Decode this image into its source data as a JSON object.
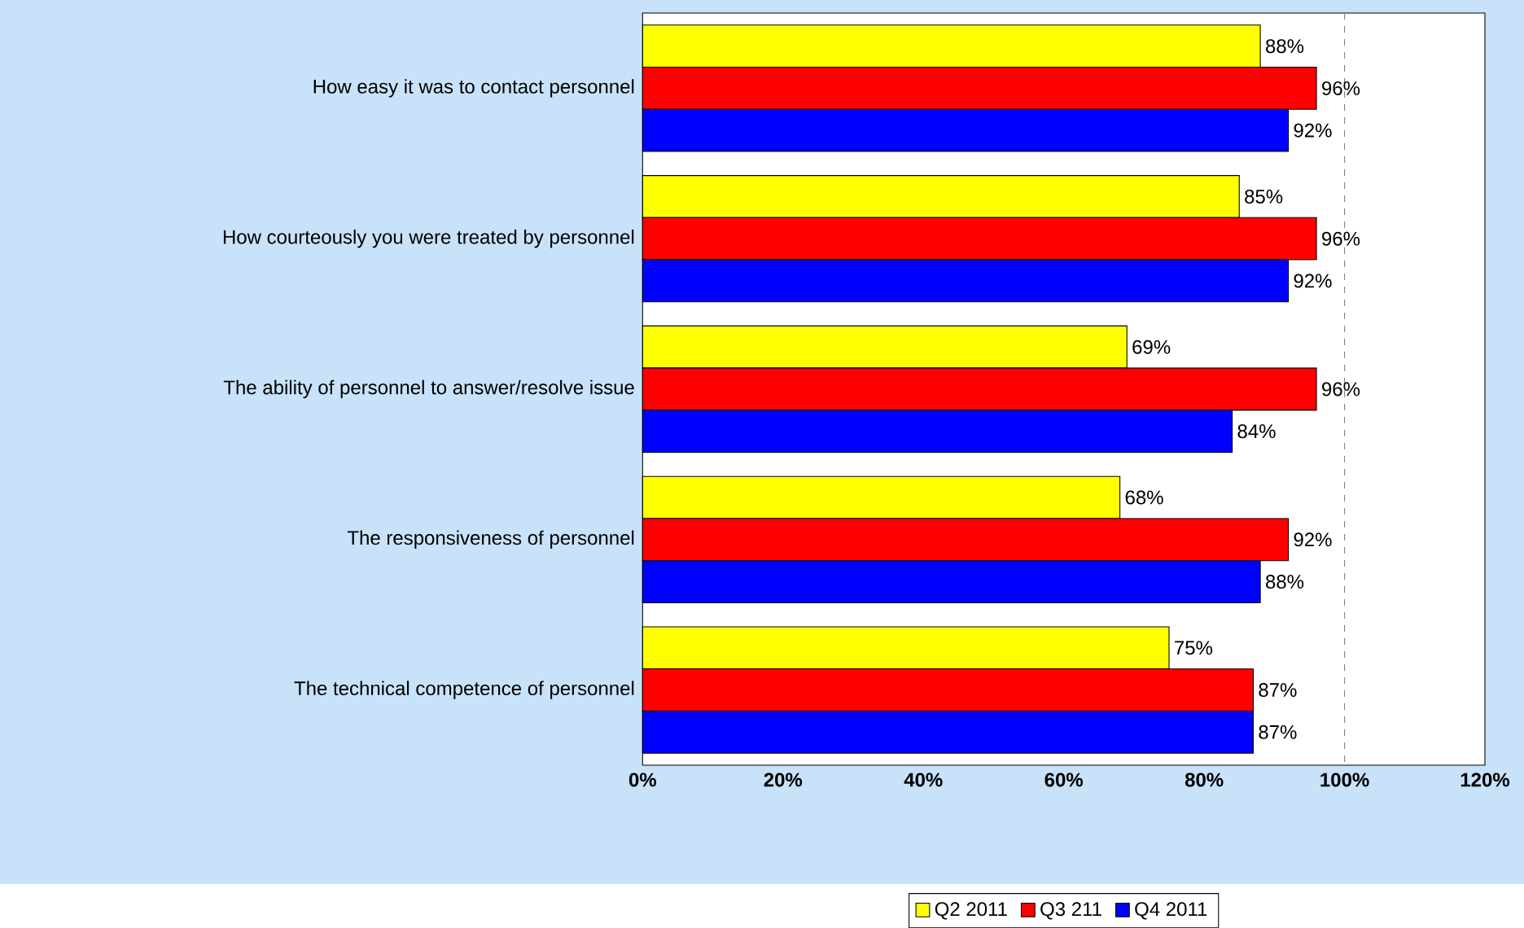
{
  "chart_data": {
    "type": "bar",
    "orientation": "horizontal",
    "categories": [
      "How easy it was to contact personnel",
      "How courteously you were treated by personnel",
      "The ability of personnel to answer/resolve issue",
      "The responsiveness of personnel",
      "The technical competence of personnel"
    ],
    "series": [
      {
        "name": "Q2 2011",
        "color": "#ffff00",
        "values": [
          88,
          85,
          69,
          68,
          75
        ],
        "value_labels": [
          "88%",
          "85%",
          "69%",
          "68%",
          "75%"
        ]
      },
      {
        "name": "Q3 211",
        "color": "#ff0000",
        "values": [
          96,
          96,
          96,
          92,
          87
        ],
        "value_labels": [
          "96%",
          "96%",
          "96%",
          "92%",
          "87%"
        ]
      },
      {
        "name": "Q4 2011",
        "color": "#0000ff",
        "values": [
          92,
          92,
          84,
          88,
          87
        ],
        "value_labels": [
          "92%",
          "92%",
          "84%",
          "88%",
          "87%"
        ]
      }
    ],
    "xlim": [
      0,
      120
    ],
    "xticks": [
      {
        "value": 0,
        "label": "0%"
      },
      {
        "value": 20,
        "label": "20%"
      },
      {
        "value": 40,
        "label": "40%"
      },
      {
        "value": 60,
        "label": "60%"
      },
      {
        "value": 80,
        "label": "80%"
      },
      {
        "value": 100,
        "label": "100%"
      },
      {
        "value": 120,
        "label": "120%"
      }
    ],
    "ref_lines": [
      {
        "axis": "x",
        "value": 100,
        "line_style": "dashed",
        "color": "#808080"
      }
    ],
    "legend": "bottom",
    "grid": false
  }
}
